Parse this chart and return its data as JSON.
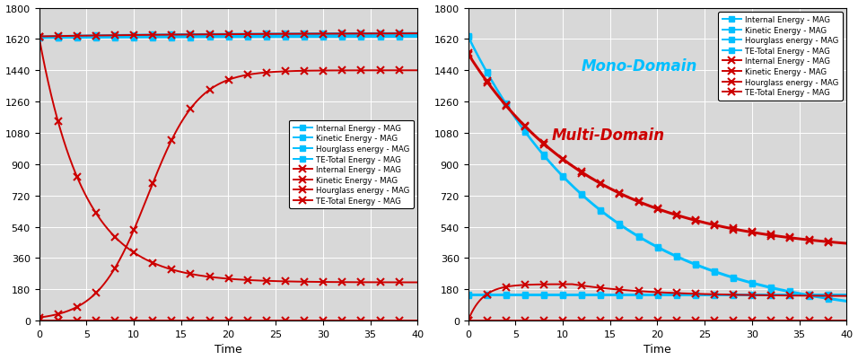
{
  "xlim": [
    0,
    40
  ],
  "ylim": [
    0,
    1800
  ],
  "yticks": [
    0,
    180,
    360,
    540,
    720,
    900,
    1080,
    1260,
    1440,
    1620,
    1800
  ],
  "xticks": [
    0,
    5,
    10,
    15,
    20,
    25,
    30,
    35,
    40
  ],
  "xlabel": "Time",
  "cyan_color": "#00BFFF",
  "red_color": "#CC0000",
  "mono_label": "Mono-Domain",
  "multi_label": "Multi-Domain",
  "legend_labels_cyan": [
    "Internal Energy - MAG",
    "Kinetic Energy - MAG",
    "Hourglass energy - MAG",
    "TE-Total Energy - MAG"
  ],
  "legend_labels_red": [
    "Internal Energy - MAG",
    "Kinetic Energy - MAG",
    "Hourglass energy - MAG",
    "TE-Total Energy - MAG"
  ],
  "background_color": "#D8D8D8"
}
